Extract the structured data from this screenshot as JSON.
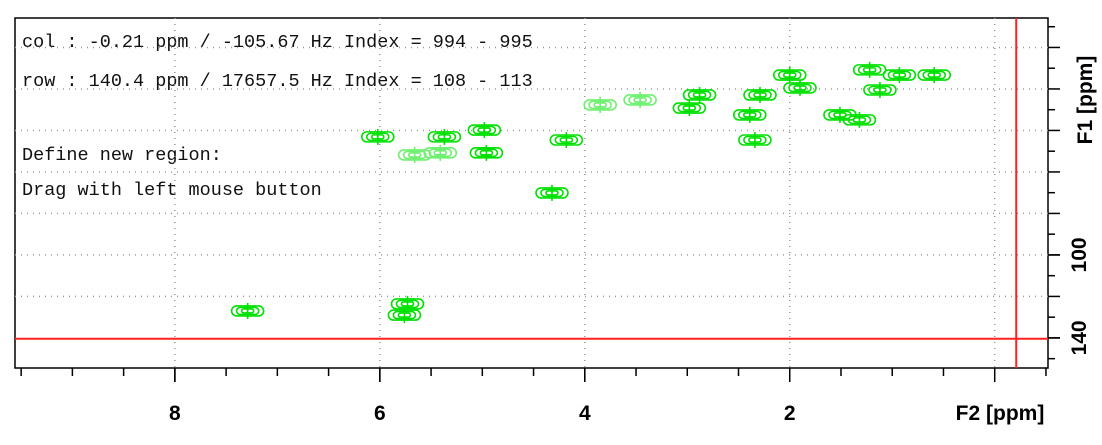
{
  "chart_data": {
    "type": "contour",
    "info_lines": [
      "col : -0.21 ppm / -105.67 Hz Index = 994 - 995",
      "row : 140.4 ppm / 17657.5 Hz Index = 108 - 113",
      "Define new region:",
      "Drag with left mouse button"
    ],
    "xlabel": "F2 [ppm]",
    "ylabel": "F1 [ppm]",
    "xlim": [
      9.56,
      -0.52
    ],
    "ylim": [
      -14.2,
      154.5
    ],
    "xticks": [
      8,
      6,
      4,
      2
    ],
    "xgrid": [
      8,
      6,
      4,
      2,
      0
    ],
    "xminor": 0.5,
    "yticks": [
      100,
      140
    ],
    "ygrid": [
      0,
      20,
      40,
      60,
      80,
      100,
      120
    ],
    "yminor": 10,
    "cursor": {
      "x": -0.21,
      "y": 140.4,
      "color": "#ff2020"
    },
    "series": [
      {
        "color": "#00e000",
        "x": [
          7.29,
          5.73,
          5.76,
          6.02,
          5.37,
          4.98,
          4.96,
          4.18,
          4.32,
          2.98,
          2.34,
          2.39,
          2.29,
          2.0,
          1.9,
          1.51,
          1.32,
          1.22,
          0.93,
          0.59,
          1.12,
          2.88
        ],
        "y": [
          127,
          123.6,
          129,
          43.1,
          43.1,
          39.8,
          50.8,
          44.6,
          70.1,
          29.2,
          44.6,
          32.5,
          22.9,
          13.3,
          19.5,
          32.5,
          34.9,
          10.8,
          13.3,
          13.3,
          20.5,
          22.9
        ]
      },
      {
        "color": "#70f070",
        "x": [
          5.66,
          5.41,
          3.85,
          3.46
        ],
        "y": [
          51.8,
          50.8,
          27.7,
          25.3
        ]
      }
    ]
  }
}
